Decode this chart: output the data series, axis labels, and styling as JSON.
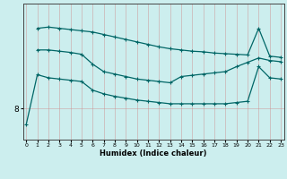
{
  "xlabel": "Humidex (Indice chaleur)",
  "background_color": "#cceeee",
  "line_color": "#006666",
  "x": [
    0,
    1,
    2,
    3,
    4,
    5,
    6,
    7,
    8,
    9,
    10,
    11,
    12,
    13,
    14,
    15,
    16,
    17,
    18,
    19,
    20,
    21,
    22,
    23
  ],
  "line_top": [
    null,
    9.3,
    9.32,
    9.3,
    9.28,
    9.26,
    9.24,
    9.2,
    9.16,
    9.12,
    9.08,
    9.04,
    9.0,
    8.97,
    8.95,
    8.93,
    8.92,
    8.9,
    8.89,
    8.88,
    8.87,
    9.3,
    8.85,
    8.83
  ],
  "line_mid": [
    null,
    8.95,
    8.95,
    8.93,
    8.91,
    8.88,
    8.72,
    8.6,
    8.56,
    8.52,
    8.48,
    8.46,
    8.44,
    8.42,
    8.52,
    8.54,
    8.56,
    8.58,
    8.6,
    8.68,
    8.75,
    8.82,
    8.78,
    8.76
  ],
  "line_bot": [
    7.75,
    8.55,
    8.5,
    8.48,
    8.46,
    8.44,
    8.3,
    8.24,
    8.2,
    8.17,
    8.14,
    8.12,
    8.1,
    8.08,
    8.08,
    8.08,
    8.08,
    8.08,
    8.08,
    8.1,
    8.12,
    8.68,
    8.5,
    8.48
  ],
  "ytick_val": 8.0,
  "ytick_label": "8",
  "xlim": [
    -0.3,
    23.3
  ],
  "ylim": [
    7.5,
    9.7
  ]
}
